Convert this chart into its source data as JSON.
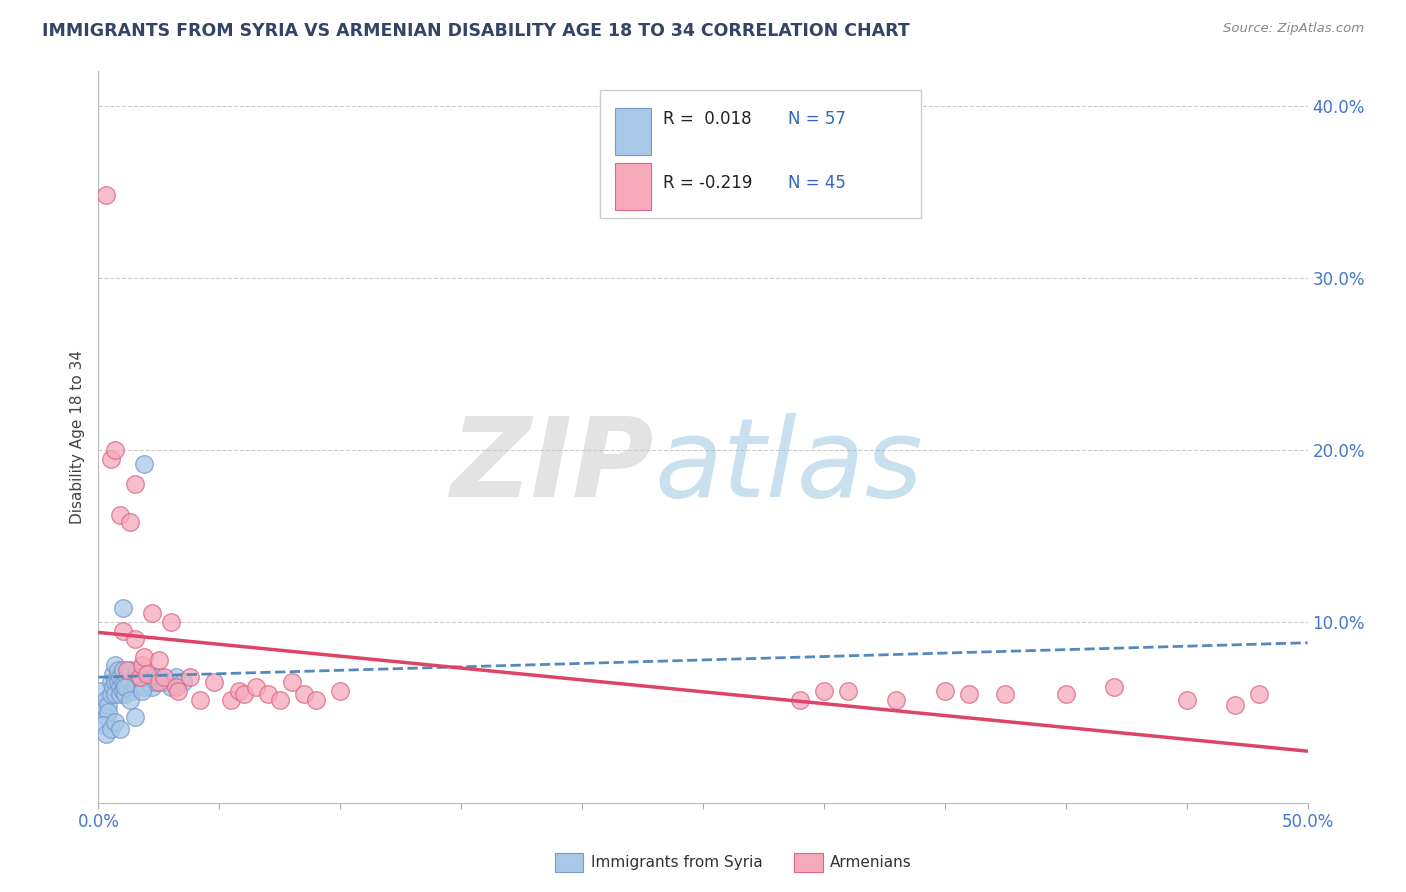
{
  "title": "IMMIGRANTS FROM SYRIA VS ARMENIAN DISABILITY AGE 18 TO 34 CORRELATION CHART",
  "source": "Source: ZipAtlas.com",
  "ylabel": "Disability Age 18 to 34",
  "legend_labels": [
    "Immigrants from Syria",
    "Armenians"
  ],
  "legend_r_blue": "R =  0.018",
  "legend_r_pink": "R = -0.219",
  "legend_n_blue": "N = 57",
  "legend_n_pink": "N = 45",
  "blue_color": "#a8c8e8",
  "pink_color": "#f5aabb",
  "blue_edge": "#7799cc",
  "pink_edge": "#dd6688",
  "trend_blue_color": "#5588bb",
  "trend_pink_color": "#dd4466",
  "r_n_color": "#3366bb",
  "title_color": "#334466",
  "axis_label_color": "#4477cc",
  "grid_color": "#cccccc",
  "background_color": "#ffffff",
  "xlim": [
    0.0,
    0.5
  ],
  "ylim": [
    -0.005,
    0.42
  ],
  "yticks": [
    0.0,
    0.1,
    0.2,
    0.3,
    0.4
  ],
  "ytick_labels": [
    "",
    "10.0%",
    "20.0%",
    "30.0%",
    "40.0%"
  ],
  "blue_x": [
    0.001,
    0.002,
    0.003,
    0.003,
    0.004,
    0.004,
    0.005,
    0.005,
    0.006,
    0.006,
    0.007,
    0.007,
    0.007,
    0.008,
    0.008,
    0.008,
    0.009,
    0.009,
    0.009,
    0.01,
    0.01,
    0.01,
    0.011,
    0.011,
    0.012,
    0.012,
    0.013,
    0.013,
    0.014,
    0.015,
    0.015,
    0.016,
    0.016,
    0.017,
    0.018,
    0.019,
    0.02,
    0.021,
    0.022,
    0.023,
    0.024,
    0.025,
    0.027,
    0.03,
    0.032,
    0.035,
    0.002,
    0.003,
    0.005,
    0.007,
    0.009,
    0.01,
    0.011,
    0.013,
    0.015,
    0.018,
    0.019
  ],
  "blue_y": [
    0.06,
    0.05,
    0.045,
    0.055,
    0.052,
    0.048,
    0.065,
    0.058,
    0.07,
    0.062,
    0.065,
    0.058,
    0.075,
    0.068,
    0.072,
    0.065,
    0.062,
    0.058,
    0.068,
    0.065,
    0.072,
    0.06,
    0.058,
    0.065,
    0.062,
    0.068,
    0.065,
    0.072,
    0.06,
    0.068,
    0.062,
    0.065,
    0.072,
    0.068,
    0.065,
    0.062,
    0.068,
    0.065,
    0.062,
    0.068,
    0.065,
    0.068,
    0.065,
    0.062,
    0.068,
    0.065,
    0.04,
    0.035,
    0.038,
    0.042,
    0.038,
    0.108,
    0.062,
    0.055,
    0.045,
    0.06,
    0.192
  ],
  "pink_x": [
    0.003,
    0.005,
    0.007,
    0.009,
    0.01,
    0.012,
    0.013,
    0.015,
    0.015,
    0.017,
    0.018,
    0.019,
    0.02,
    0.022,
    0.025,
    0.025,
    0.027,
    0.03,
    0.032,
    0.033,
    0.038,
    0.042,
    0.048,
    0.055,
    0.058,
    0.06,
    0.065,
    0.07,
    0.075,
    0.08,
    0.085,
    0.09,
    0.1,
    0.29,
    0.31,
    0.35,
    0.375,
    0.4,
    0.42,
    0.45,
    0.47,
    0.48,
    0.3,
    0.33,
    0.36
  ],
  "pink_y": [
    0.348,
    0.195,
    0.2,
    0.162,
    0.095,
    0.072,
    0.158,
    0.09,
    0.18,
    0.068,
    0.075,
    0.08,
    0.07,
    0.105,
    0.065,
    0.078,
    0.068,
    0.1,
    0.062,
    0.06,
    0.068,
    0.055,
    0.065,
    0.055,
    0.06,
    0.058,
    0.062,
    0.058,
    0.055,
    0.065,
    0.058,
    0.055,
    0.06,
    0.055,
    0.06,
    0.06,
    0.058,
    0.058,
    0.062,
    0.055,
    0.052,
    0.058,
    0.06,
    0.055,
    0.058
  ],
  "blue_trend_x": [
    0.0,
    0.5
  ],
  "blue_trend_y": [
    0.068,
    0.088
  ],
  "pink_trend_x": [
    0.0,
    0.5
  ],
  "pink_trend_y": [
    0.094,
    0.025
  ]
}
